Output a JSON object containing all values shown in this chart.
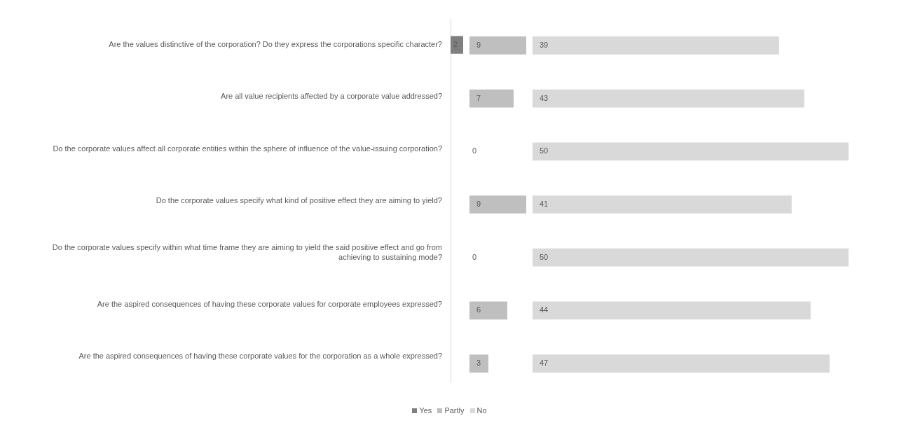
{
  "chart_data": [
    {
      "type": "bar",
      "orientation": "horizontal",
      "legend": "bottom",
      "grid": false,
      "tick_labels": "y",
      "data_labels": true,
      "categories": [
        "Are the values distinctive of the corporation? Do they express the corporations specific character?",
        "Are all value recipients affected by a corporate value addressed?",
        "Do the corporate values affect all corporate entities within the sphere of influence of the value-issuing corporation?",
        "Do the corporate values specify what kind of positive effect they are aiming to yield?",
        "Do the corporate values specify within what time frame they are aiming to yield the said positive effect and go from achieving to sustaining mode?",
        "Are the aspired consequences of having these corporate values for corporate employees expressed?",
        "Are the aspired consequences of having these corporate values for the corporation as a whole expressed?"
      ],
      "series": [
        {
          "name": "Yes",
          "color": "#7f7f7f",
          "values": [
            2,
            null,
            null,
            null,
            null,
            null,
            null
          ]
        }
      ]
    },
    {
      "type": "bar",
      "orientation": "horizontal",
      "legend": "bottom",
      "grid": false,
      "tick_labels": false,
      "data_labels": true,
      "categories": [
        null,
        null,
        null,
        null,
        null,
        null,
        null
      ],
      "series": [
        {
          "name": "Partly",
          "color": "#bfbfbf",
          "values": [
            9,
            7,
            0,
            9,
            0,
            6,
            3
          ]
        }
      ]
    },
    {
      "type": "bar",
      "orientation": "horizontal",
      "legend": "bottom",
      "grid": false,
      "tick_labels": false,
      "data_labels": true,
      "categories": [
        null,
        null,
        null,
        null,
        null,
        null,
        null
      ],
      "series": [
        {
          "name": "No",
          "color": "#d9d9d9",
          "values": [
            39,
            43,
            50,
            41,
            50,
            44,
            47
          ]
        }
      ]
    }
  ]
}
